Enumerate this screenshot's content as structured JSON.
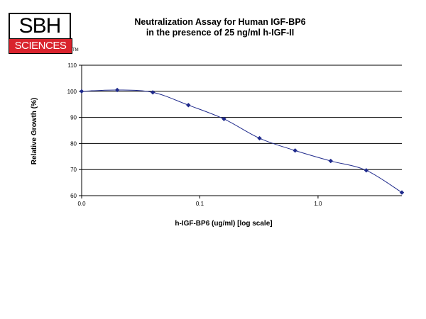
{
  "logo": {
    "top_text": "SBH",
    "bottom_text": "SCIENCES",
    "tm": "TM",
    "accent_color": "#d9232d"
  },
  "chart_data": {
    "type": "line",
    "title": "Neutralization Assay for Human IGF-BP6",
    "subtitle": "in the presence of 25 ng/ml h-IGF-II",
    "xlabel": "h-IGF-BP6 (ug/ml) [log scale]",
    "ylabel": "Relative Growth (%)",
    "x_scale": "log",
    "xlim": [
      0.01,
      5.12
    ],
    "ylim": [
      60,
      110
    ],
    "y_ticks": [
      60,
      70,
      80,
      90,
      100,
      110
    ],
    "x_ticks": [
      {
        "value": 0.01,
        "label": "0.0"
      },
      {
        "value": 0.1,
        "label": "0.1"
      },
      {
        "value": 1.0,
        "label": "1.0"
      }
    ],
    "grid": true,
    "line_color": "#1f2a8c",
    "marker": "diamond",
    "series": [
      {
        "x": [
          0.01,
          0.02,
          0.04,
          0.08,
          0.16,
          0.32,
          0.64,
          1.28,
          2.56,
          5.12
        ],
        "values": [
          100.0,
          100.5,
          99.6,
          94.7,
          89.4,
          82.0,
          77.3,
          73.3,
          69.7,
          61.2
        ]
      }
    ]
  }
}
